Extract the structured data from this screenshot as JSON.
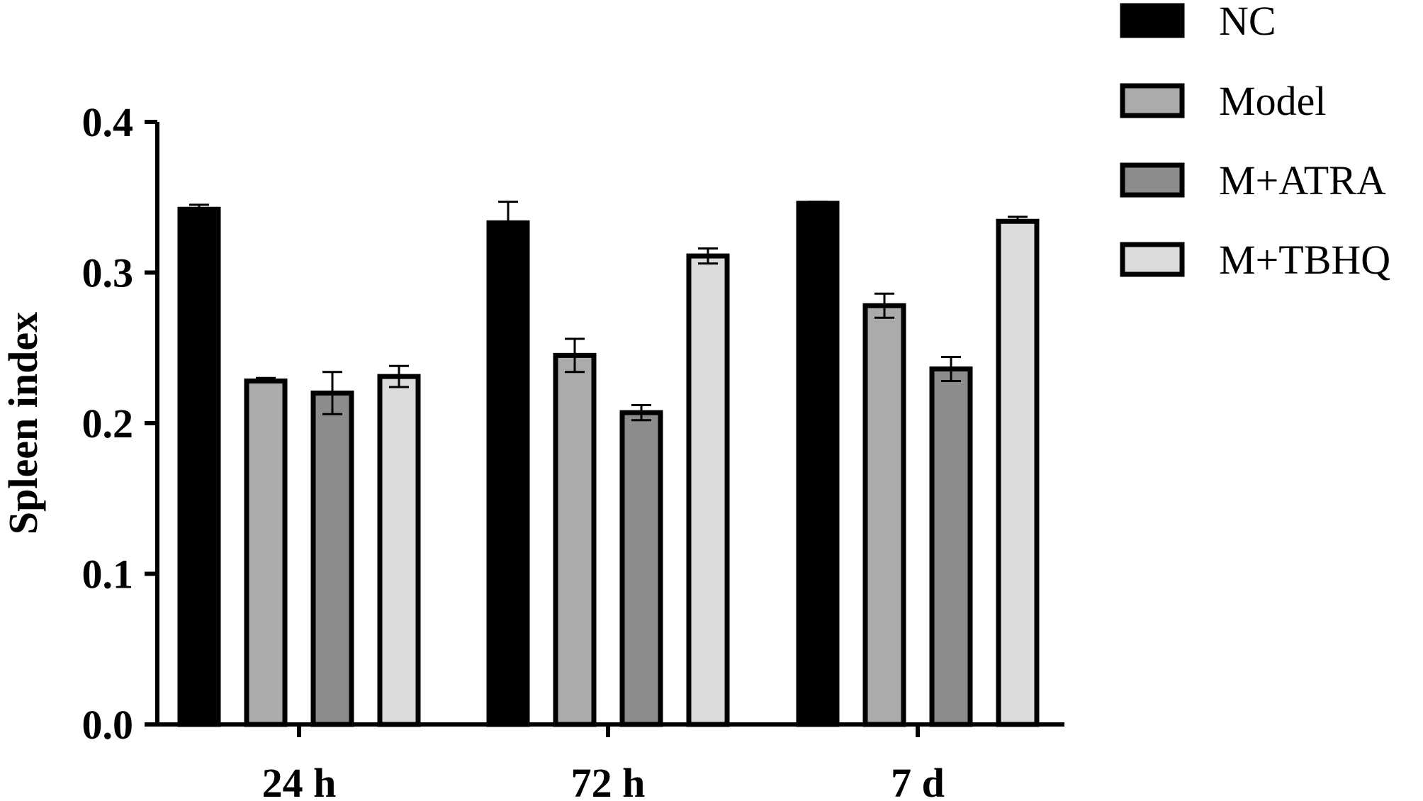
{
  "chart_data": {
    "type": "bar",
    "title": "",
    "xlabel": "",
    "ylabel": "Spleen index",
    "ylim": [
      0,
      0.4
    ],
    "yticks": [
      "0.0",
      "0.1",
      "0.2",
      "0.3",
      "0.4"
    ],
    "categories": [
      "24 h",
      "72 h",
      "7 d"
    ],
    "legend_position": "top-right",
    "grid": false,
    "series": [
      {
        "name": "NC",
        "color": "#000000",
        "values": [
          0.342,
          0.333,
          0.346
        ],
        "errors": [
          0.003,
          0.014,
          0.001
        ]
      },
      {
        "name": "Model",
        "color": "#ababab",
        "values": [
          0.228,
          0.245,
          0.278
        ],
        "errors": [
          0.002,
          0.011,
          0.008
        ]
      },
      {
        "name": "M+ATRA",
        "color": "#8c8c8c",
        "values": [
          0.22,
          0.207,
          0.236
        ],
        "errors": [
          0.014,
          0.005,
          0.008
        ]
      },
      {
        "name": "M+TBHQ",
        "color": "#dcdcdc",
        "values": [
          0.231,
          0.311,
          0.334
        ],
        "errors": [
          0.007,
          0.005,
          0.003
        ]
      }
    ]
  }
}
